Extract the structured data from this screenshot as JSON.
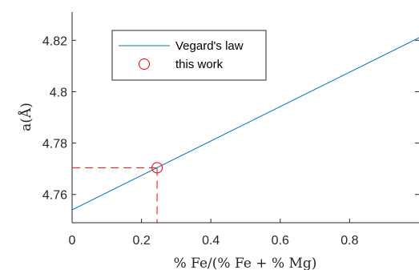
{
  "chart_data": {
    "type": "line",
    "title": "",
    "xlabel": "% Fe/(% Fe + % Mg)",
    "ylabel": "a(Å)",
    "xlim": [
      0,
      1
    ],
    "ylim": [
      4.749,
      4.831
    ],
    "xticks": [
      0,
      0.2,
      0.4,
      0.6,
      0.8
    ],
    "xtick_labels": [
      "0",
      "0.2",
      "0.4",
      "0.6",
      "0.8"
    ],
    "yticks": [
      4.76,
      4.78,
      4.8,
      4.82
    ],
    "ytick_labels": [
      "4.76",
      "4.78",
      "4.8",
      "4.82"
    ],
    "grid": false,
    "legend_position": "top-left",
    "series": [
      {
        "name": "Vegard's law",
        "type": "line",
        "color": "#0072bd",
        "x": [
          0,
          1
        ],
        "y": [
          4.754,
          4.821
        ]
      },
      {
        "name": "this work",
        "type": "scatter",
        "marker": "open-circle",
        "color": "#ff0000",
        "x": [
          0.245
        ],
        "y": [
          4.7704
        ]
      }
    ],
    "annotations": [
      {
        "type": "dashed-guide-lines",
        "color": "#ff0000",
        "x": 0.245,
        "y": 4.7704
      }
    ]
  }
}
